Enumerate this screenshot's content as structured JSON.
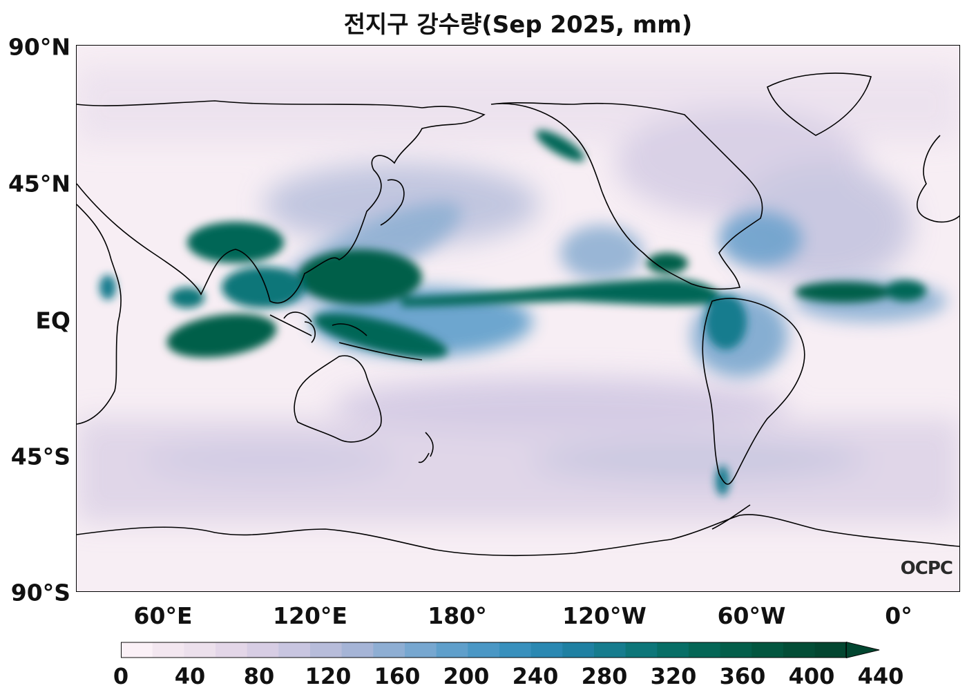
{
  "title": "전지구 강수량(Sep 2025, mm)",
  "map": {
    "lat_labels": [
      "90°N",
      "45°N",
      "EQ",
      "45°S",
      "90°S"
    ],
    "lon_labels": [
      "60°E",
      "120°E",
      "180°",
      "120°W",
      "60°W",
      "0°"
    ],
    "logo": "OCPC",
    "background_color": "#f7eef4",
    "coastline_color": "#000000"
  },
  "colorbar": {
    "ticks": [
      "0",
      "40",
      "80",
      "120",
      "160",
      "200",
      "240",
      "280",
      "320",
      "360",
      "400",
      "440"
    ],
    "colors": [
      "#fbf1f7",
      "#f3e7f0",
      "#ece0ec",
      "#e3d6e8",
      "#d7cde4",
      "#c8c5e0",
      "#b7bcda",
      "#a5b4d6",
      "#8eaed3",
      "#77a7d0",
      "#5f9fcb",
      "#4a97c5",
      "#3890bd",
      "#2a88b2",
      "#1f80a2",
      "#167c8e",
      "#0d7679",
      "#076e66",
      "#046656",
      "#035e4a",
      "#02563f",
      "#024d36",
      "#024630"
    ],
    "extend": "max"
  }
}
